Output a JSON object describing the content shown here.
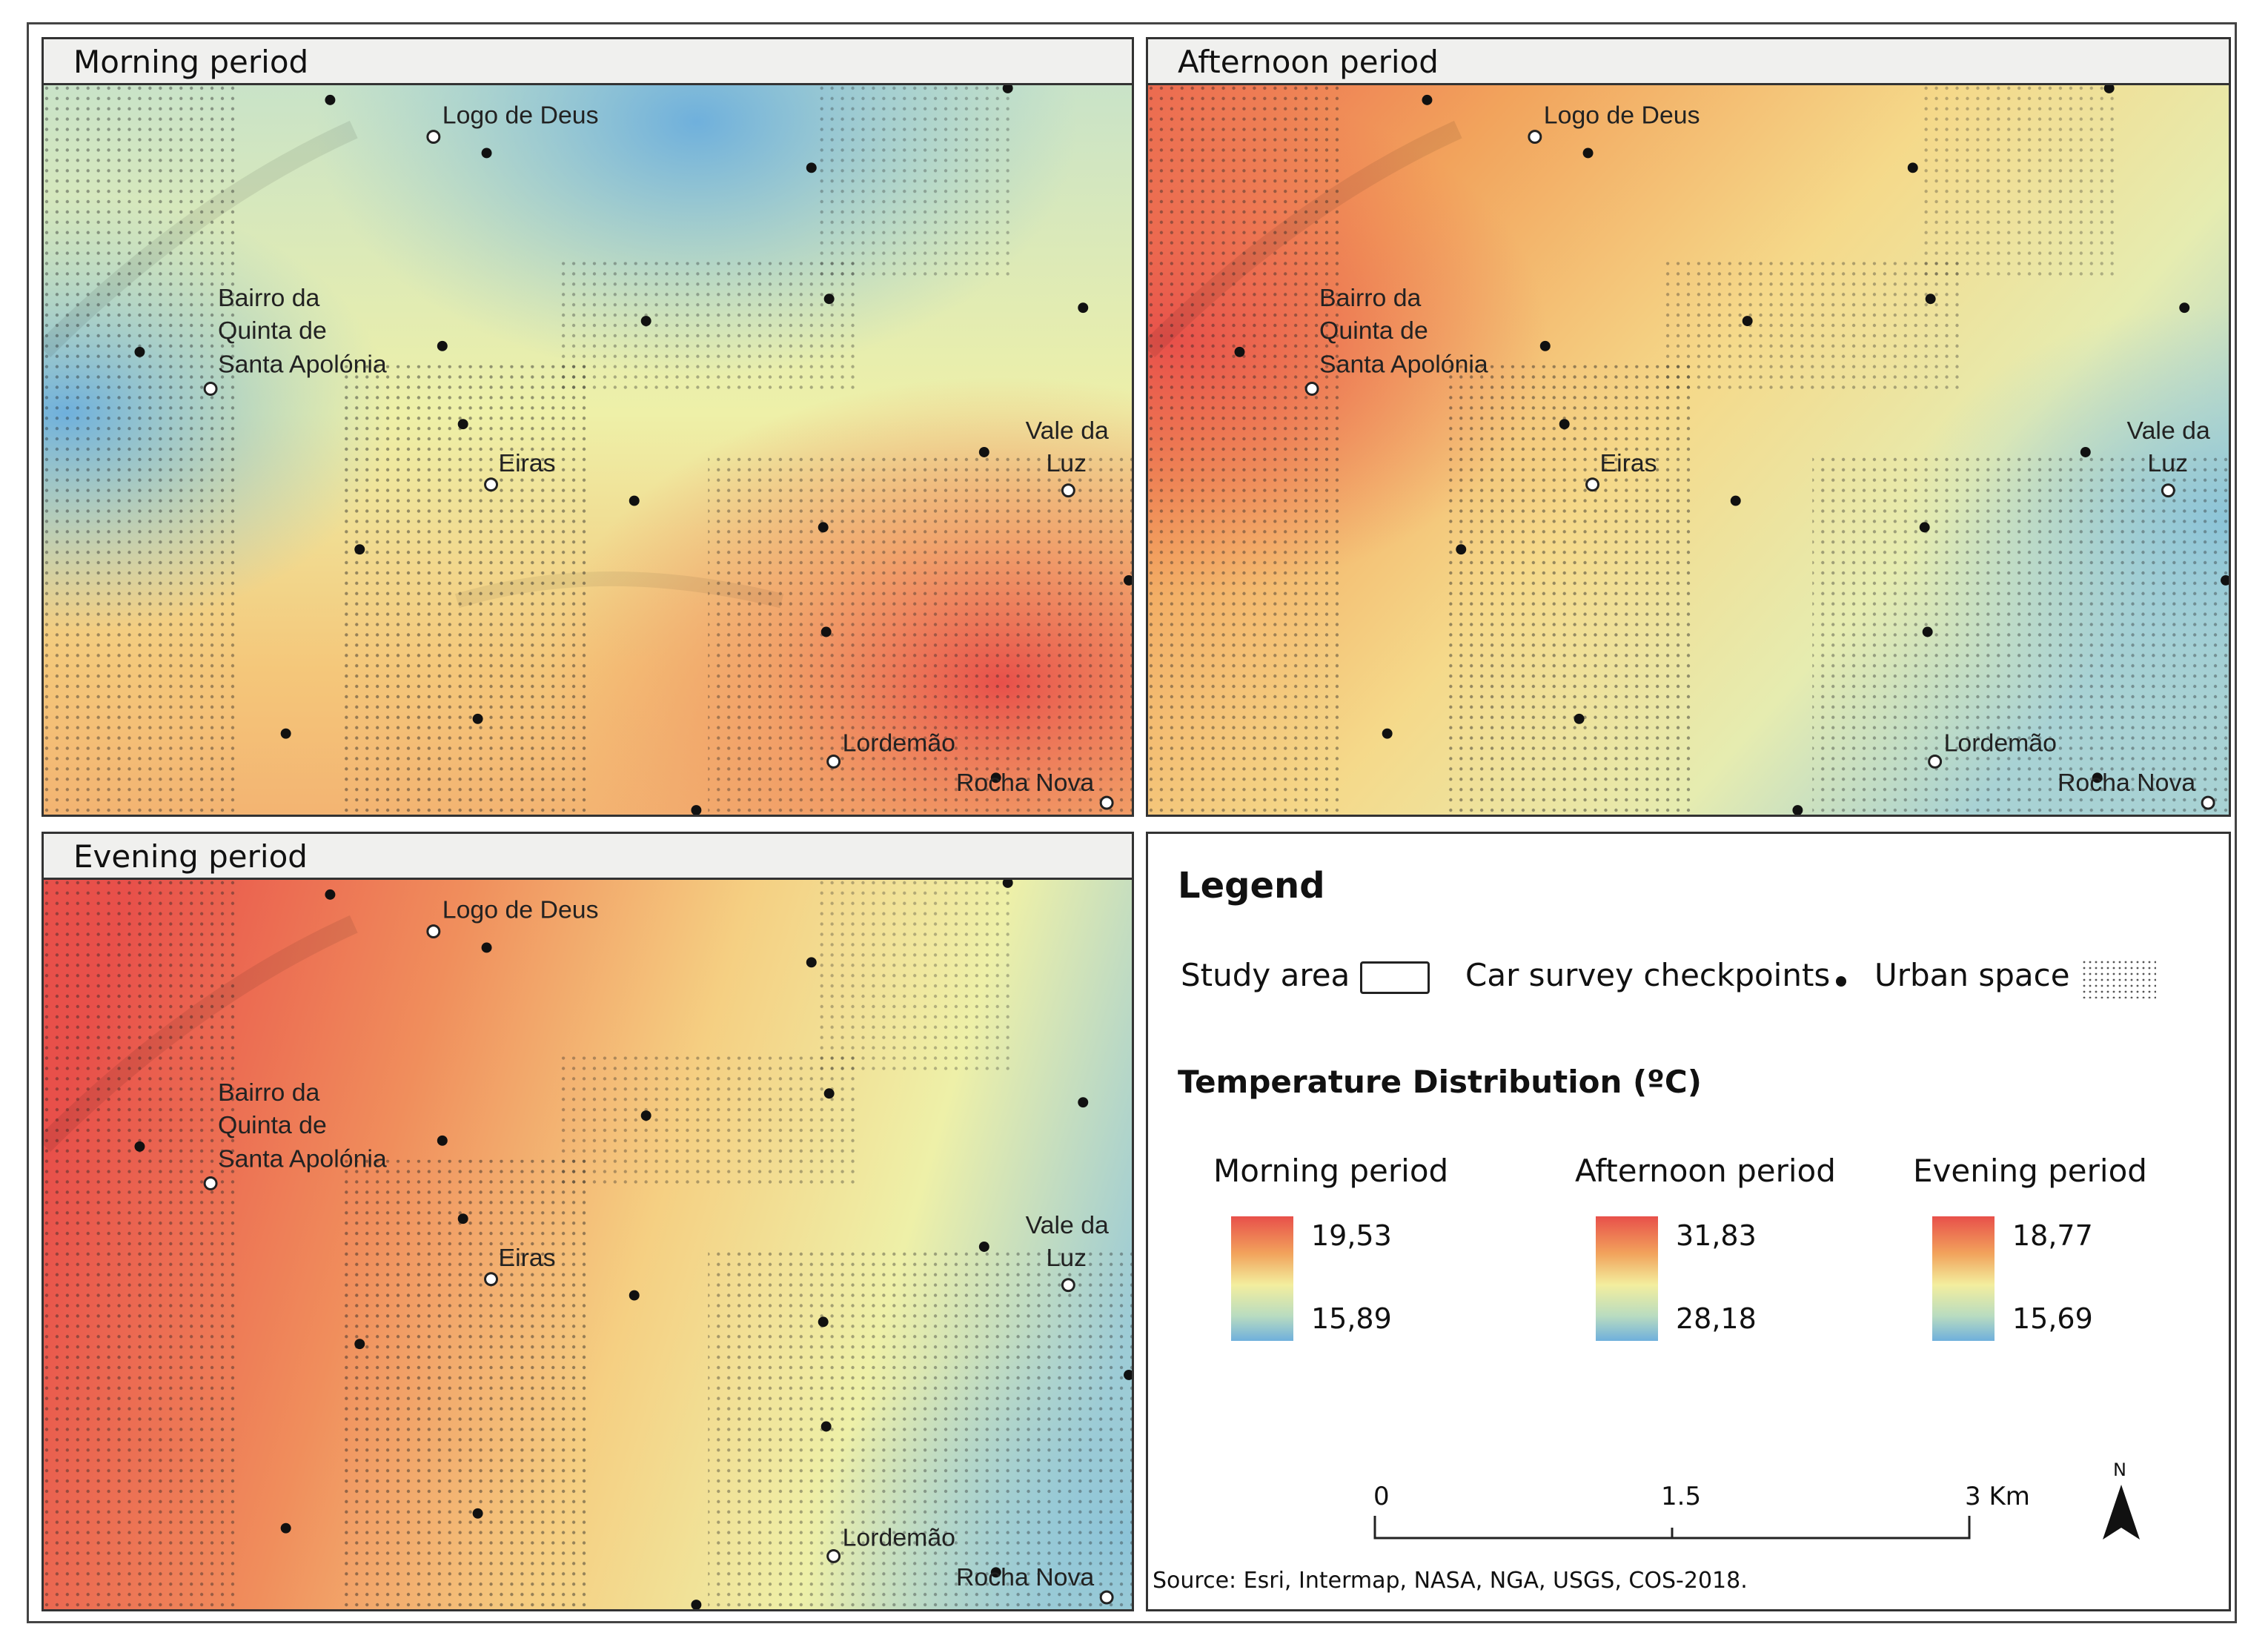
{
  "panels": {
    "morning": {
      "title": "Morning period"
    },
    "afternoon": {
      "title": "Afternoon period"
    },
    "evening": {
      "title": "Evening period"
    }
  },
  "places": {
    "logo_de_deus": "Logo de Deus",
    "bairro_1": "Bairro da",
    "bairro_2": "Quinta de",
    "bairro_3": "Santa Apolónia",
    "eiras": "Eiras",
    "vale_1": "Vale da",
    "vale_2": "Luz",
    "lordemao": "Lordemão",
    "rocha_nova": "Rocha Nova"
  },
  "legend": {
    "title": "Legend",
    "study_area": "Study area",
    "checkpoints": "Car survey checkpoints",
    "urban": "Urban space",
    "temp_title": "Temperature Distribution (ºC)",
    "ramps": [
      {
        "label": "Morning period",
        "max": "19,53",
        "min": "15,89"
      },
      {
        "label": "Afternoon period",
        "max": "31,83",
        "min": "28,18"
      },
      {
        "label": "Evening period",
        "max": "18,77",
        "min": "15,69"
      }
    ],
    "scale": {
      "t0": "0",
      "t1": "1.5",
      "t2": "3 Km"
    },
    "north": "N",
    "source": "Source: Esri, Intermap, NASA, NGA, USGS, COS-2018."
  },
  "colors": {
    "hot": "#e8504a",
    "warm": "#f2a35c",
    "mid": "#f3ee9e",
    "cool": "#8cc4d8",
    "cold": "#6fb0dc"
  }
}
